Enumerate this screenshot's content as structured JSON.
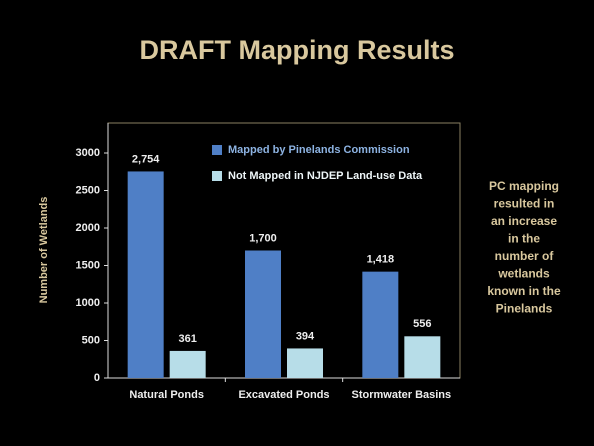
{
  "chart_data": {
    "type": "bar",
    "title": "DRAFT Mapping Results",
    "y_label": "Number of Wetlands",
    "categories": [
      "Natural Ponds",
      "Excavated Ponds",
      "Stormwater Basins"
    ],
    "series": [
      {
        "name": "Mapped by Pinelands Commission",
        "color": "#4f7fc6",
        "values": [
          2754,
          1700,
          1418
        ],
        "value_labels": [
          "2,754",
          "1,700",
          "1,418"
        ]
      },
      {
        "name": "Not Mapped in NJDEP Land-use Data",
        "color": "#b7dde8",
        "values": [
          361,
          394,
          556
        ]
      }
    ],
    "ylim": [
      0,
      3400
    ],
    "yticks": [
      0,
      500,
      1000,
      1500,
      2000,
      2500,
      3000
    ],
    "legend": "upper right",
    "annotation_lines": [
      "PC mapping",
      "resulted in",
      "an increase",
      "in the",
      "number of",
      "wetlands",
      "known in the",
      "Pinelands"
    ]
  }
}
